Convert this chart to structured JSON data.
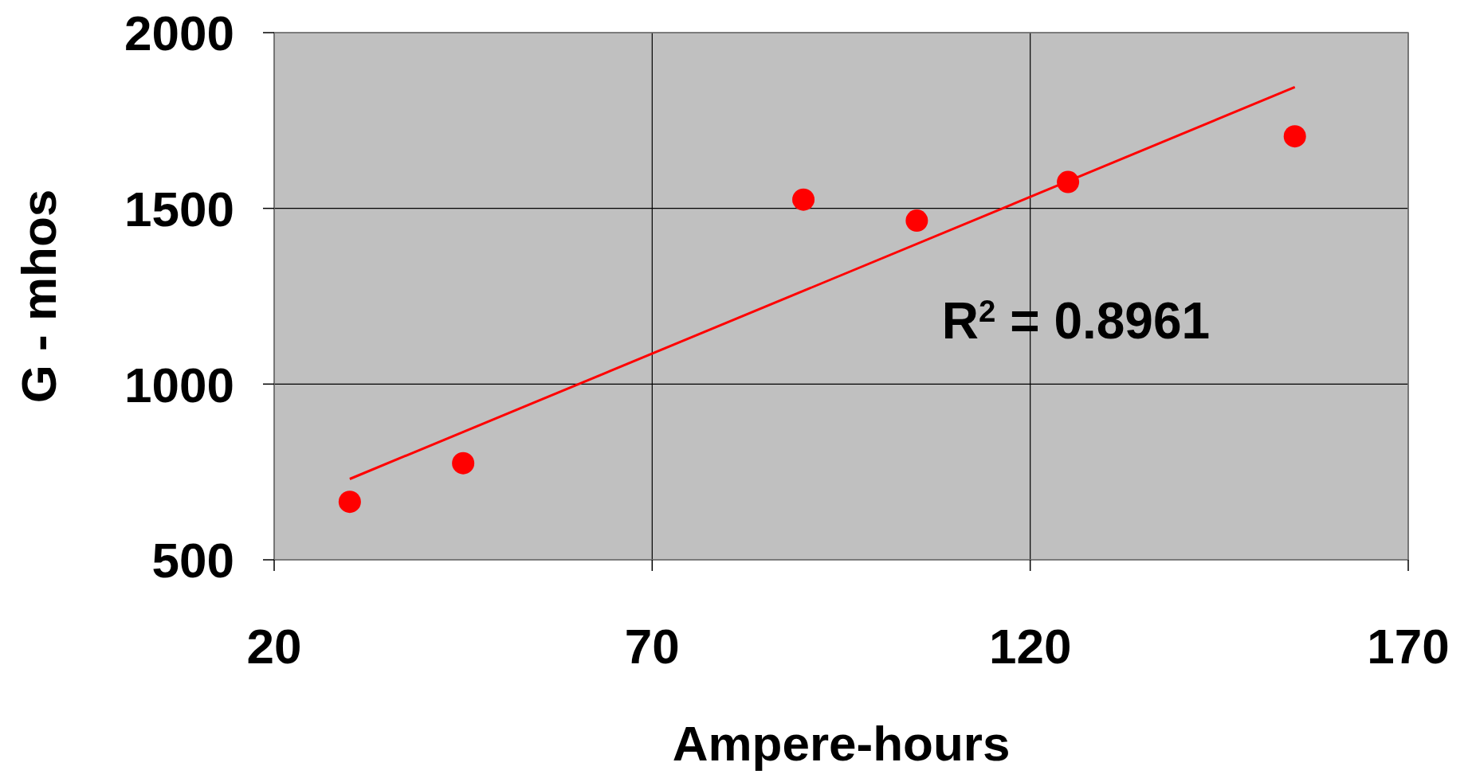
{
  "chart_data": {
    "type": "scatter",
    "xlabel": "Ampere-hours",
    "ylabel": "G - mhos",
    "xlim": [
      20,
      170
    ],
    "xticks": [
      20,
      70,
      120,
      170
    ],
    "ylim": [
      500,
      2000
    ],
    "yticks": [
      500,
      1000,
      1500,
      2000
    ],
    "grid": true,
    "marker": "circle",
    "series": [
      {
        "color": "#ff0000",
        "x": [
          30,
          45,
          90,
          105,
          125,
          155
        ],
        "values": [
          665,
          775,
          1525,
          1465,
          1575,
          1705
        ]
      },
      {
        "type": "line",
        "color": "#ff0000",
        "marker": "none",
        "x": [
          30,
          155
        ],
        "values": [
          730,
          1845
        ]
      }
    ],
    "annotations": [
      "R$^{2}$ = 0.8961"
    ]
  }
}
